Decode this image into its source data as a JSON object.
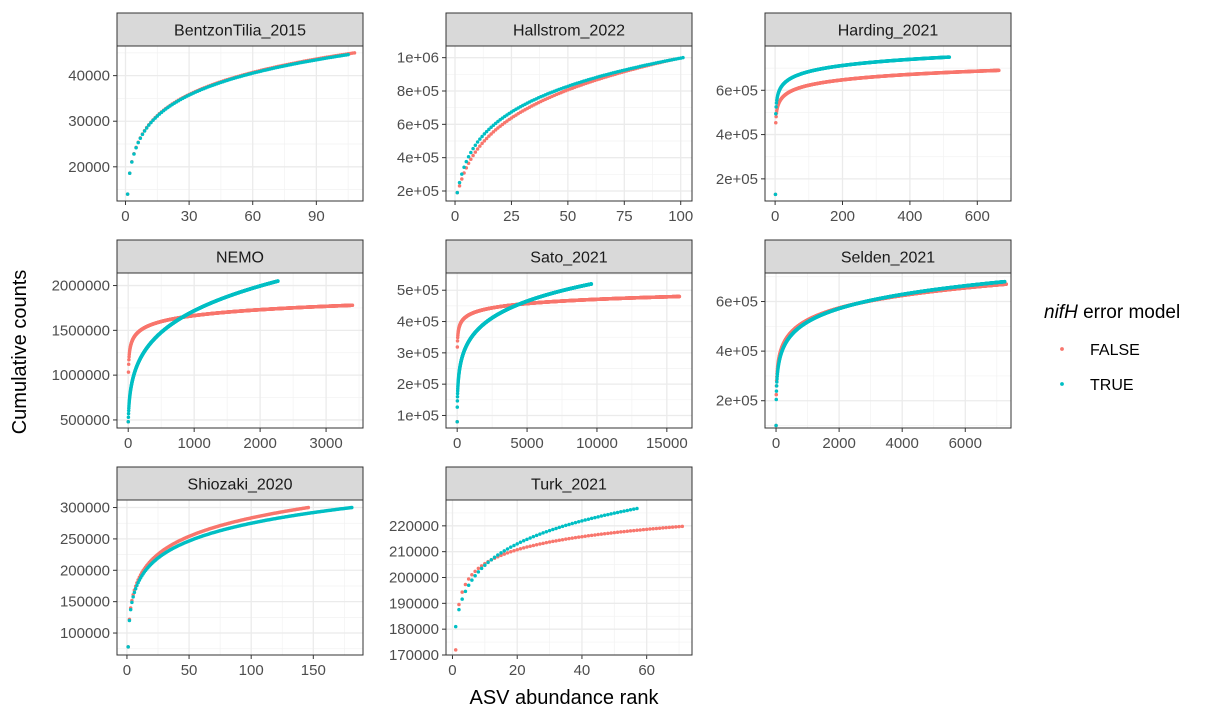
{
  "chart_data": {
    "type": "scatter",
    "xlabel": "ASV abundance rank",
    "ylabel": "Cumulative counts",
    "legend": {
      "title_italic": "nifH",
      "title_rest": " error model",
      "placement": "right",
      "entries": [
        {
          "label": "FALSE",
          "color": "#F8766D"
        },
        {
          "label": "TRUE",
          "color": "#00BFC4"
        }
      ]
    },
    "colors": {
      "FALSE": "#F8766D",
      "TRUE": "#00BFC4",
      "strip_bg": "#d9d9d9",
      "grid": "#ebebeb"
    },
    "panels": [
      {
        "title": "BentzonTilia_2015",
        "xlim": [
          -4,
          112
        ],
        "ylim": [
          12500,
          46500
        ],
        "xticks": [
          0,
          30,
          60,
          90
        ],
        "xtick_labels": [
          "0",
          "30",
          "60",
          "90"
        ],
        "yticks": [
          20000,
          30000,
          40000
        ],
        "ytick_labels": [
          "20000",
          "30000",
          "40000"
        ],
        "series": [
          {
            "name": "FALSE",
            "n": 108,
            "y_first": 14000,
            "y_last": 45000,
            "k": 0.9,
            "p": 0.1
          },
          {
            "name": "TRUE",
            "n": 105,
            "y_first": 14000,
            "y_last": 44600,
            "k": 0.9,
            "p": 0.1
          }
        ]
      },
      {
        "title": "Hallstrom_2022",
        "xlim": [
          -4,
          105
        ],
        "ylim": [
          140000,
          1070000
        ],
        "xticks": [
          0,
          25,
          50,
          75,
          100
        ],
        "xtick_labels": [
          "0",
          "25",
          "50",
          "75",
          "100"
        ],
        "yticks": [
          200000,
          400000,
          600000,
          800000,
          1000000
        ],
        "ytick_labels": [
          "2e+05",
          "4e+05",
          "6e+05",
          "8e+05",
          "1e+06"
        ],
        "series": [
          {
            "name": "FALSE",
            "n": 97,
            "y_first": 190000,
            "y_last": 990000,
            "k": 1.5,
            "p": 0.05
          },
          {
            "name": "TRUE",
            "n": 101,
            "y_first": 190000,
            "y_last": 1000000,
            "k": 1.3,
            "p": 0.05
          }
        ]
      },
      {
        "title": "Harding_2021",
        "xlim": [
          -30,
          700
        ],
        "ylim": [
          100000,
          800000
        ],
        "xticks": [
          0,
          200,
          400,
          600
        ],
        "xtick_labels": [
          "0",
          "200",
          "400",
          "600"
        ],
        "yticks": [
          200000,
          400000,
          600000
        ],
        "ytick_labels": [
          "2e+05",
          "4e+05",
          "6e+05"
        ],
        "series": [
          {
            "name": "FALSE",
            "n": 664,
            "y_first": 130000,
            "y_last": 690000,
            "k": 0.15,
            "p": 0.4
          },
          {
            "name": "TRUE",
            "n": 517,
            "y_first": 130000,
            "y_last": 750000,
            "k": 0.15,
            "p": 0.4
          }
        ]
      },
      {
        "title": "NEMO",
        "xlim": [
          -170,
          3560
        ],
        "ylim": [
          410000,
          2140000
        ],
        "xticks": [
          0,
          1000,
          2000,
          3000
        ],
        "xtick_labels": [
          "0",
          "1000",
          "2000",
          "3000"
        ],
        "yticks": [
          500000,
          1000000,
          1500000,
          2000000
        ],
        "ytick_labels": [
          "500000",
          "1000000",
          "1500000",
          "2000000"
        ],
        "series": [
          {
            "name": "FALSE",
            "n": 3400,
            "y_first": 480000,
            "y_last": 1780000,
            "k": 0.4,
            "p": 0.1
          },
          {
            "name": "TRUE",
            "n": 2270,
            "y_first": 480000,
            "y_last": 2050000,
            "k": 1.5,
            "p": 0.1
          }
        ]
      },
      {
        "title": "Sato_2021",
        "xlim": [
          -800,
          16800
        ],
        "ylim": [
          60000,
          555000
        ],
        "xticks": [
          0,
          5000,
          10000,
          15000
        ],
        "xtick_labels": [
          "0",
          "5000",
          "10000",
          "15000"
        ],
        "yticks": [
          100000,
          200000,
          300000,
          400000,
          500000
        ],
        "ytick_labels": [
          "1e+05",
          "2e+05",
          "3e+05",
          "4e+05",
          "5e+05"
        ],
        "series": [
          {
            "name": "FALSE",
            "n": 15900,
            "y_first": 80000,
            "y_last": 480000,
            "k": 0.3,
            "p": 0.1
          },
          {
            "name": "TRUE",
            "n": 9600,
            "y_first": 80000,
            "y_last": 520000,
            "k": 1.2,
            "p": 0.1
          }
        ]
      },
      {
        "title": "Selden_2021",
        "xlim": [
          -350,
          7450
        ],
        "ylim": [
          90000,
          715000
        ],
        "xticks": [
          0,
          2000,
          4000,
          6000
        ],
        "xtick_labels": [
          "0",
          "2000",
          "4000",
          "6000"
        ],
        "yticks": [
          200000,
          400000,
          600000
        ],
        "ytick_labels": [
          "2e+05",
          "4e+05",
          "6e+05"
        ],
        "series": [
          {
            "name": "FALSE",
            "n": 7300,
            "y_first": 100000,
            "y_last": 670000,
            "k": 0.8,
            "p": 0.1
          },
          {
            "name": "TRUE",
            "n": 7250,
            "y_first": 100000,
            "y_last": 680000,
            "k": 0.9,
            "p": 0.1
          }
        ]
      },
      {
        "title": "Shiozaki_2020",
        "xlim": [
          -8,
          190
        ],
        "ylim": [
          65000,
          312000
        ],
        "xticks": [
          0,
          50,
          100,
          150
        ],
        "xtick_labels": [
          "0",
          "50",
          "100",
          "150"
        ],
        "yticks": [
          100000,
          150000,
          200000,
          250000,
          300000
        ],
        "ytick_labels": [
          "100000",
          "150000",
          "200000",
          "250000",
          "300000"
        ],
        "series": [
          {
            "name": "FALSE",
            "n": 146,
            "y_first": 78000,
            "y_last": 300000,
            "k": 0.7,
            "p": 0.15
          },
          {
            "name": "TRUE",
            "n": 181,
            "y_first": 78000,
            "y_last": 300000,
            "k": 0.7,
            "p": 0.15
          }
        ]
      },
      {
        "title": "Turk_2021",
        "xlim": [
          -2,
          74
        ],
        "ylim": [
          170000,
          230000
        ],
        "xticks": [
          0,
          20,
          40,
          60
        ],
        "xtick_labels": [
          "0",
          "20",
          "40",
          "60"
        ],
        "yticks": [
          170000,
          180000,
          190000,
          200000,
          210000,
          220000
        ],
        "ytick_labels": [
          "170000",
          "180000",
          "190000",
          "200000",
          "210000",
          "220000"
        ],
        "series": [
          {
            "name": "FALSE",
            "n": 71,
            "y_first": 172000,
            "y_last": 219800,
            "k": 0.5,
            "p": 0.1
          },
          {
            "name": "TRUE",
            "n": 57,
            "y_first": 181000,
            "y_last": 226700,
            "k": 1.0,
            "p": 0.1
          }
        ]
      }
    ]
  }
}
